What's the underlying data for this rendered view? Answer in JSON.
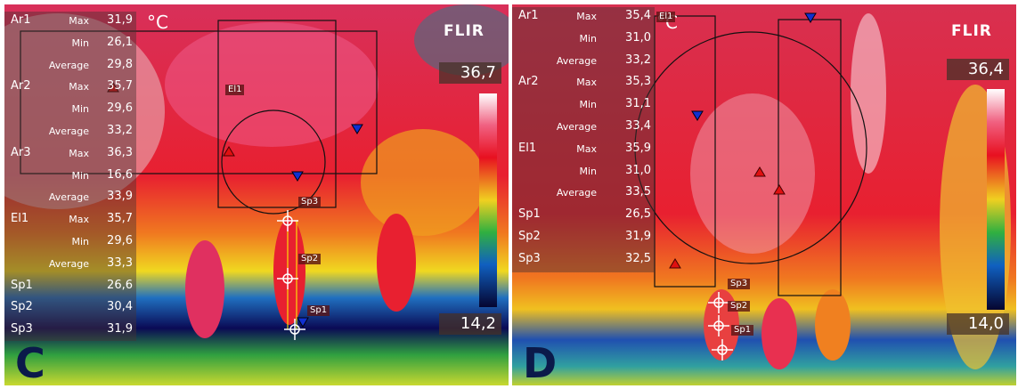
{
  "panels": [
    {
      "letter": "C",
      "unit": "°C",
      "logo": "FLIR",
      "scale_max": "36,7",
      "scale_min": "14,2",
      "measurements": [
        {
          "label": "Ar1",
          "stats": [
            {
              "stat": "Max",
              "value": "31,9"
            },
            {
              "stat": "Min",
              "value": "26,1"
            },
            {
              "stat": "Average",
              "value": "29,8"
            }
          ]
        },
        {
          "label": "Ar2",
          "stats": [
            {
              "stat": "Max",
              "value": "35,7"
            },
            {
              "stat": "Min",
              "value": "29,6"
            },
            {
              "stat": "Average",
              "value": "33,2"
            }
          ]
        },
        {
          "label": "Ar3",
          "stats": [
            {
              "stat": "Max",
              "value": "36,3"
            },
            {
              "stat": "Min",
              "value": "16,6"
            },
            {
              "stat": "Average",
              "value": "33,9"
            }
          ]
        },
        {
          "label": "El1",
          "stats": [
            {
              "stat": "Max",
              "value": "35,7"
            },
            {
              "stat": "Min",
              "value": "29,6"
            },
            {
              "stat": "Average",
              "value": "33,3"
            }
          ]
        },
        {
          "label": "Sp1",
          "value": "26,6"
        },
        {
          "label": "Sp2",
          "value": "30,4"
        },
        {
          "label": "Sp3",
          "value": "31,9"
        }
      ],
      "overlay_labels": [
        "El1",
        "Sp3",
        "Sp2",
        "Sp1"
      ]
    },
    {
      "letter": "D",
      "unit": "°C",
      "logo": "FLIR",
      "scale_max": "36,4",
      "scale_min": "14,0",
      "measurements": [
        {
          "label": "Ar1",
          "stats": [
            {
              "stat": "Max",
              "value": "35,4"
            },
            {
              "stat": "Min",
              "value": "31,0"
            },
            {
              "stat": "Average",
              "value": "33,2"
            }
          ]
        },
        {
          "label": "Ar2",
          "stats": [
            {
              "stat": "Max",
              "value": "35,3"
            },
            {
              "stat": "Min",
              "value": "31,1"
            },
            {
              "stat": "Average",
              "value": "33,4"
            }
          ]
        },
        {
          "label": "El1",
          "stats": [
            {
              "stat": "Max",
              "value": "35,9"
            },
            {
              "stat": "Min",
              "value": "31,0"
            },
            {
              "stat": "Average",
              "value": "33,5"
            }
          ]
        },
        {
          "label": "Sp1",
          "value": "26,5"
        },
        {
          "label": "Sp2",
          "value": "31,9"
        },
        {
          "label": "Sp3",
          "value": "32,5"
        }
      ],
      "overlay_labels": [
        "El1",
        "Sp3",
        "Sp2",
        "Sp1"
      ]
    }
  ]
}
